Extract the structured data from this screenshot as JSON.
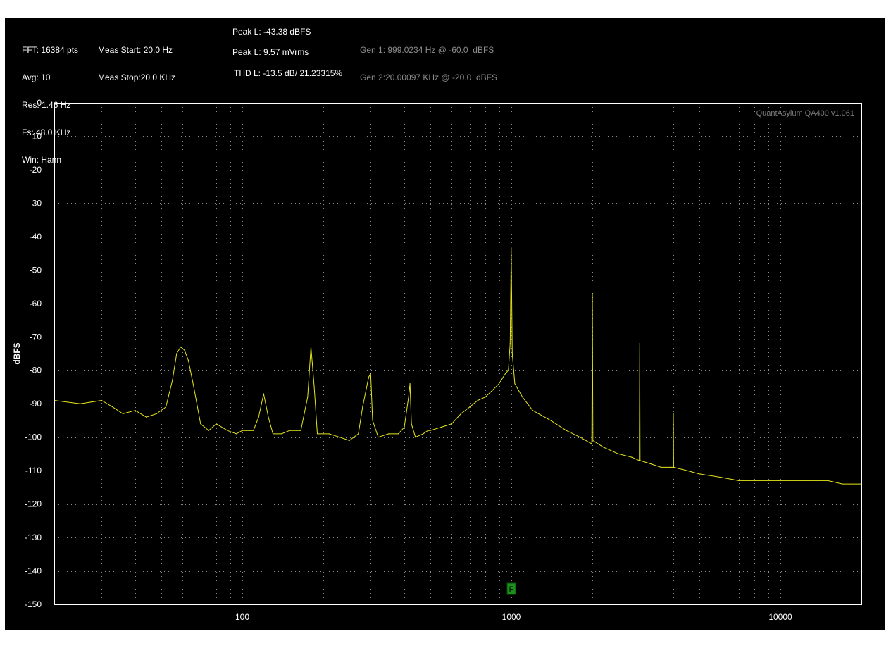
{
  "header": {
    "fft_lines": [
      "FFT: 16384 pts",
      "Avg: 10",
      "Res: 1.46 Hz",
      "Fs: 48.0 KHz",
      "Win: Hann"
    ],
    "meas_lines": [
      "Meas Start: 20.0 Hz",
      "Meas Stop:20.0 KHz"
    ],
    "peak_dbfs": "Peak L: -43.38 dBFS",
    "peak_mvrms": "Peak L: 9.57 mVrms",
    "thd": "THD L: -13.5 dB/ 21.23315%",
    "gen_lines": [
      "Gen 1: 999.0234 Hz @ -60.0  dBFS",
      "Gen 2:20.00097 KHz @ -20.0  dBFS"
    ]
  },
  "chart_data": {
    "type": "line",
    "title": "",
    "xlabel": "",
    "ylabel": "dBFS",
    "xscale": "log",
    "xlim": [
      20,
      20000
    ],
    "ylim": [
      -150,
      0
    ],
    "xticks": [
      100,
      1000,
      10000
    ],
    "xtick_labels": [
      "100",
      "1000",
      "10000"
    ],
    "yticks": [
      0,
      -10,
      -20,
      -30,
      -40,
      -50,
      -60,
      -70,
      -80,
      -90,
      -100,
      -110,
      -120,
      -130,
      -140,
      -150
    ],
    "ytick_labels": [
      "0",
      "-10",
      "-20",
      "-30",
      "-40",
      "-50",
      "-60",
      "-70",
      "-80",
      "-90",
      "-100",
      "-110",
      "-120",
      "-130",
      "-140",
      "-150"
    ],
    "grid": true,
    "watermark": "QuantAsylum QA400 v1.061",
    "marker_label": "F",
    "marker_x": 1000,
    "series": [
      {
        "color": "#e6e61a",
        "x": [
          20,
          25,
          30,
          33,
          36,
          40,
          44,
          48,
          52,
          55,
          57,
          59,
          61,
          63,
          66,
          70,
          75,
          80,
          88,
          95,
          100,
          110,
          115,
          120,
          125,
          130,
          140,
          150,
          165,
          175,
          180,
          185,
          190,
          200,
          210,
          230,
          250,
          270,
          280,
          295,
          300,
          305,
          320,
          350,
          380,
          400,
          415,
          420,
          425,
          440,
          470,
          490,
          500,
          550,
          600,
          650,
          700,
          750,
          800,
          850,
          900,
          950,
          975,
          990,
          999,
          1008,
          1030,
          1100,
          1200,
          1400,
          1600,
          1800,
          1990,
          2000,
          2010,
          2200,
          2500,
          2800,
          2990,
          3000,
          3010,
          3300,
          3600,
          3900,
          3990,
          4000,
          4010,
          4500,
          5000,
          6000,
          7000,
          8000,
          10000,
          12000,
          15000,
          17000,
          20000
        ],
        "y": [
          -89,
          -90,
          -89,
          -91,
          -93,
          -92,
          -94,
          -93,
          -91,
          -83,
          -75,
          -73,
          -74,
          -77,
          -85,
          -96,
          -98,
          -96,
          -98,
          -99,
          -98,
          -98,
          -94,
          -87,
          -94,
          -99,
          -99,
          -98,
          -98,
          -88,
          -73,
          -85,
          -99,
          -99,
          -99,
          -100,
          -101,
          -99,
          -91,
          -82,
          -81,
          -95,
          -100,
          -99,
          -99,
          -97,
          -88,
          -84,
          -96,
          -100,
          -99,
          -98,
          -98,
          -97,
          -96,
          -93,
          -91,
          -89,
          -88,
          -86,
          -84,
          -81,
          -80,
          -72,
          -43.4,
          -75,
          -84,
          -88,
          -92,
          -95,
          -98,
          -100,
          -102,
          -57,
          -101,
          -103,
          -105,
          -106,
          -107,
          -72,
          -107,
          -108,
          -109,
          -109,
          -109,
          -93,
          -109,
          -110,
          -111,
          -112,
          -113,
          -113,
          -113,
          -113,
          -113,
          -114,
          -114
        ]
      }
    ]
  }
}
